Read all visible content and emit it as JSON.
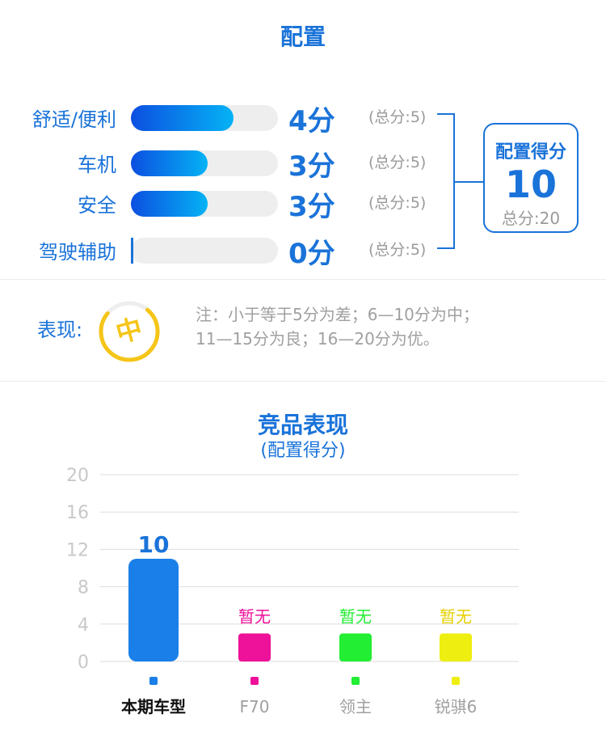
{
  "config": {
    "title": "配置",
    "items": [
      {
        "label": "舒适/便利",
        "score": 4,
        "score_text": "4分",
        "total_text": "(总分:5)"
      },
      {
        "label": "车机",
        "score": 3,
        "score_text": "3分",
        "total_text": "(总分:5)"
      },
      {
        "label": "安全",
        "score": 3,
        "score_text": "3分",
        "total_text": "(总分:5)"
      },
      {
        "label": "驾驶辅助",
        "score": 0,
        "score_text": "0分",
        "total_text": "(总分:5)"
      }
    ],
    "max_score": 5,
    "summary": {
      "title": "配置得分",
      "value": "10",
      "total": "总分:20"
    }
  },
  "performance": {
    "label": "表现:",
    "grade": "中",
    "grade_color": "#f5c518",
    "note_line1": "注：小于等于5分为差；6—10分为中；",
    "note_line2": "11—15分为良；16—20分为优。"
  },
  "chart_data": {
    "type": "bar",
    "title": "竞品表现",
    "subtitle": "(配置得分)",
    "categories": [
      "本期车型",
      "F70",
      "领主",
      "锐骐6"
    ],
    "values": [
      10,
      null,
      null,
      null
    ],
    "data_labels": [
      "10",
      "暂无",
      "暂无",
      "暂无"
    ],
    "colors": [
      "#1a7fe8",
      "#ee1199",
      "#22ee33",
      "#eeee11"
    ],
    "yticks": [
      0,
      4,
      8,
      12,
      16,
      20
    ],
    "ylim": [
      0,
      20
    ],
    "grid": true,
    "placeholder_bar_value": 3,
    "current_value_display_offset": 1
  }
}
